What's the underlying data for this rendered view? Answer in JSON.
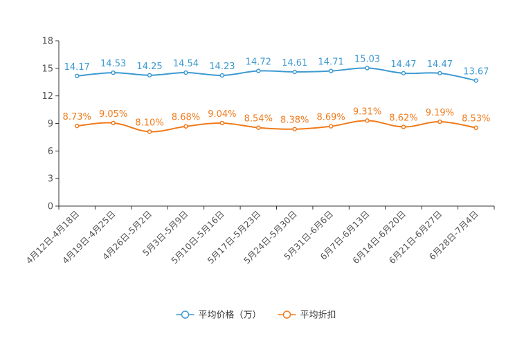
{
  "chart_data": {
    "type": "line",
    "title": "",
    "xlabel": "",
    "ylabel": "",
    "ylim": [
      0,
      18
    ],
    "yticks": [
      0,
      3,
      6,
      9,
      12,
      15,
      18
    ],
    "grid": false,
    "legend_position": "bottom-center",
    "categories": [
      "4月12日-4月18日",
      "4月19日-4月25日",
      "4月26日-5月2日",
      "5月3日-5月9日",
      "5月10日-5月16日",
      "5月17日-5月23日",
      "5月24日-5月30日",
      "5月31日-6月6日",
      "6月7日-6月13日",
      "6月14日-6月20日",
      "6月21日-6月27日",
      "6月28日-7月4日"
    ],
    "series": [
      {
        "name": "平均价格（万）",
        "color": "#3d9ad1",
        "values": [
          14.17,
          14.53,
          14.25,
          14.54,
          14.23,
          14.72,
          14.61,
          14.71,
          15.03,
          14.47,
          14.47,
          13.67
        ],
        "labels": [
          "14.17",
          "14.53",
          "14.25",
          "14.54",
          "14.23",
          "14.72",
          "14.61",
          "14.71",
          "15.03",
          "14.47",
          "14.47",
          "13.67"
        ]
      },
      {
        "name": "平均折扣",
        "color": "#f07a1a",
        "values": [
          8.73,
          9.05,
          8.1,
          8.68,
          9.04,
          8.54,
          8.38,
          8.69,
          9.31,
          8.62,
          9.19,
          8.53
        ],
        "labels": [
          "8.73%",
          "9.05%",
          "8.10%",
          "8.68%",
          "9.04%",
          "8.54%",
          "8.38%",
          "8.69%",
          "9.31%",
          "8.62%",
          "9.19%",
          "8.53%"
        ]
      }
    ]
  }
}
